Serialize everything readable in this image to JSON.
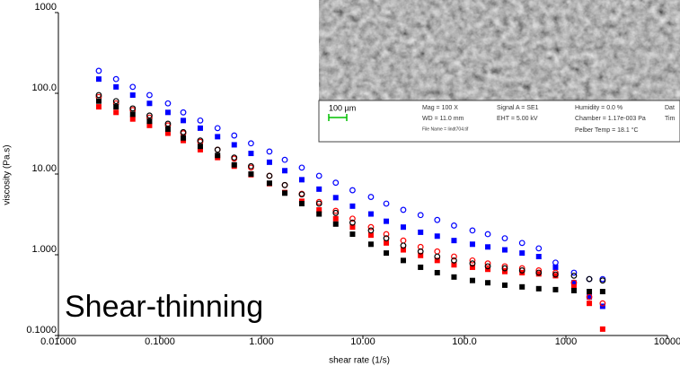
{
  "chart_data": {
    "type": "scatter",
    "xlabel": "shear rate (1/s)",
    "ylabel": "viscosity (Pa.s)",
    "annotation": "Shear-thinning",
    "annotation_color": "#f0a020",
    "xlog": true,
    "ylog": true,
    "xlim": [
      0.01,
      10000
    ],
    "ylim": [
      0.1,
      1000
    ],
    "xticks": [
      {
        "value": 0.01,
        "label": "0.01000"
      },
      {
        "value": 0.1,
        "label": "0.1000"
      },
      {
        "value": 1,
        "label": "1.000"
      },
      {
        "value": 10,
        "label": "10.00"
      },
      {
        "value": 100,
        "label": "100.0"
      },
      1000,
      10000
    ],
    "yticks": [
      {
        "value": 0.1,
        "label": "0.1000"
      },
      {
        "value": 1,
        "label": "1.000"
      },
      {
        "value": 10,
        "label": "10.00"
      },
      {
        "value": 100,
        "label": "100.0"
      },
      1000
    ],
    "x": [
      0.025,
      0.037,
      0.054,
      0.079,
      0.12,
      0.17,
      0.25,
      0.37,
      0.54,
      0.79,
      1.2,
      1.7,
      2.5,
      3.7,
      5.4,
      7.9,
      12,
      17,
      25,
      37,
      54,
      79,
      120,
      170,
      250,
      370,
      540,
      790,
      1200,
      1700,
      2300
    ],
    "series": [
      {
        "color": "#0000ff",
        "marker": "circle",
        "values": [
          190,
          150,
          120,
          95,
          75,
          58,
          46,
          37,
          30,
          24,
          19,
          15,
          12,
          9.5,
          7.8,
          6.3,
          5.2,
          4.3,
          3.6,
          3.1,
          2.7,
          2.3,
          2.0,
          1.8,
          1.6,
          1.4,
          1.2,
          0.8,
          0.6,
          0.5,
          0.5
        ]
      },
      {
        "color": "#0000ff",
        "marker": "square",
        "values": [
          150,
          120,
          95,
          75,
          58,
          46,
          37,
          29,
          23,
          18,
          14,
          11,
          8.5,
          6.5,
          5.1,
          4.0,
          3.2,
          2.6,
          2.2,
          1.9,
          1.7,
          1.5,
          1.35,
          1.25,
          1.15,
          1.05,
          0.95,
          0.7,
          0.45,
          0.3,
          0.23
        ]
      },
      {
        "color": "#ff0000",
        "marker": "circle",
        "values": [
          90,
          75,
          62,
          50,
          40,
          32,
          25,
          20,
          15.5,
          12,
          9.5,
          7.3,
          5.7,
          4.5,
          3.5,
          2.8,
          2.2,
          1.8,
          1.5,
          1.25,
          1.1,
          0.95,
          0.85,
          0.78,
          0.72,
          0.68,
          0.64,
          0.6,
          0.45,
          0.3,
          0.25
        ]
      },
      {
        "color": "#ff0000",
        "marker": "square",
        "values": [
          68,
          58,
          48,
          40,
          32,
          26,
          20,
          16,
          12.5,
          9.8,
          7.6,
          5.9,
          4.6,
          3.6,
          2.8,
          2.2,
          1.75,
          1.4,
          1.15,
          0.98,
          0.85,
          0.75,
          0.7,
          0.66,
          0.62,
          0.6,
          0.58,
          0.55,
          0.4,
          0.25,
          0.12
        ]
      },
      {
        "color": "#000000",
        "marker": "circle",
        "values": [
          95,
          80,
          65,
          53,
          42,
          33,
          26,
          20,
          16,
          12.5,
          9.5,
          7.3,
          5.6,
          4.3,
          3.3,
          2.5,
          2.0,
          1.6,
          1.3,
          1.1,
          0.95,
          0.85,
          0.78,
          0.72,
          0.68,
          0.64,
          0.6,
          0.57,
          0.55,
          0.5,
          0.48
        ]
      },
      {
        "color": "#000000",
        "marker": "square",
        "values": [
          80,
          68,
          55,
          45,
          36,
          28,
          22,
          17,
          13,
          10,
          7.7,
          5.8,
          4.3,
          3.2,
          2.4,
          1.8,
          1.35,
          1.05,
          0.85,
          0.7,
          0.6,
          0.53,
          0.48,
          0.45,
          0.42,
          0.4,
          0.38,
          0.37,
          0.36,
          0.35,
          0.35
        ]
      }
    ]
  },
  "inset": {
    "scale_bar": "100 µm",
    "mag": "Mag =   100 X",
    "wd": "WD = 11.0 mm",
    "file": "File Name = lindt704.tif",
    "signal": "Signal A = SE1",
    "eht": "EHT =  5.00 kV",
    "humidity": "Humidity =  0.0 %",
    "chamber": "Chamber = 1.17e-003 Pa",
    "temp": "Pelber Temp =  18.1 °C",
    "date": "Dat",
    "time": "Tim"
  }
}
